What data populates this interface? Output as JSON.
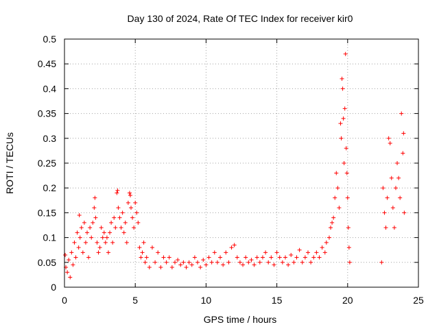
{
  "chart_data": {
    "type": "scatter",
    "title": "Day 130 of 2024, Rate Of TEC Index for receiver kir0",
    "xlabel": "GPS time / hours",
    "ylabel": "ROTI / TECUs",
    "xlim": [
      0,
      25
    ],
    "ylim": [
      0,
      0.5
    ],
    "xticks": [
      0,
      5,
      10,
      15,
      20,
      25
    ],
    "xtick_labels": [
      "0",
      "5",
      "10",
      "15",
      "20",
      "25"
    ],
    "yticks": [
      0,
      0.05,
      0.1,
      0.15,
      0.2,
      0.25,
      0.3,
      0.35,
      0.4,
      0.45,
      0.5
    ],
    "ytick_labels": [
      "0",
      "0.05",
      "0.1",
      "0.15",
      "0.2",
      "0.25",
      "0.3",
      "0.35",
      "0.4",
      "0.45",
      "0.5"
    ],
    "grid": true,
    "marker": "plus",
    "color": "#ff0000",
    "series": [
      {
        "name": "",
        "points": [
          [
            0.05,
            0.065
          ],
          [
            0.1,
            0.04
          ],
          [
            0.2,
            0.03
          ],
          [
            0.3,
            0.055
          ],
          [
            0.4,
            0.02
          ],
          [
            0.5,
            0.07
          ],
          [
            0.6,
            0.045
          ],
          [
            0.7,
            0.09
          ],
          [
            0.8,
            0.06
          ],
          [
            0.9,
            0.11
          ],
          [
            1.0,
            0.08
          ],
          [
            1.05,
            0.145
          ],
          [
            1.1,
            0.1
          ],
          [
            1.2,
            0.12
          ],
          [
            1.3,
            0.07
          ],
          [
            1.4,
            0.13
          ],
          [
            1.5,
            0.09
          ],
          [
            1.6,
            0.11
          ],
          [
            1.7,
            0.06
          ],
          [
            1.8,
            0.12
          ],
          [
            1.9,
            0.1
          ],
          [
            2.0,
            0.13
          ],
          [
            2.1,
            0.16
          ],
          [
            2.15,
            0.18
          ],
          [
            2.2,
            0.14
          ],
          [
            2.3,
            0.09
          ],
          [
            2.4,
            0.07
          ],
          [
            2.5,
            0.08
          ],
          [
            2.6,
            0.12
          ],
          [
            2.7,
            0.1
          ],
          [
            2.8,
            0.11
          ],
          [
            2.9,
            0.09
          ],
          [
            3.0,
            0.1
          ],
          [
            3.1,
            0.07
          ],
          [
            3.2,
            0.11
          ],
          [
            3.3,
            0.13
          ],
          [
            3.4,
            0.09
          ],
          [
            3.5,
            0.14
          ],
          [
            3.6,
            0.12
          ],
          [
            3.7,
            0.19
          ],
          [
            3.75,
            0.195
          ],
          [
            3.8,
            0.16
          ],
          [
            3.9,
            0.14
          ],
          [
            4.0,
            0.12
          ],
          [
            4.1,
            0.15
          ],
          [
            4.2,
            0.11
          ],
          [
            4.3,
            0.13
          ],
          [
            4.4,
            0.09
          ],
          [
            4.5,
            0.17
          ],
          [
            4.6,
            0.19
          ],
          [
            4.65,
            0.185
          ],
          [
            4.7,
            0.16
          ],
          [
            4.8,
            0.14
          ],
          [
            4.9,
            0.12
          ],
          [
            5.0,
            0.17
          ],
          [
            5.1,
            0.15
          ],
          [
            5.2,
            0.13
          ],
          [
            5.3,
            0.08
          ],
          [
            5.4,
            0.06
          ],
          [
            5.5,
            0.07
          ],
          [
            5.6,
            0.09
          ],
          [
            5.7,
            0.05
          ],
          [
            5.8,
            0.06
          ],
          [
            6.0,
            0.04
          ],
          [
            6.2,
            0.08
          ],
          [
            6.4,
            0.05
          ],
          [
            6.6,
            0.07
          ],
          [
            6.8,
            0.04
          ],
          [
            7.0,
            0.06
          ],
          [
            7.2,
            0.05
          ],
          [
            7.4,
            0.06
          ],
          [
            7.6,
            0.04
          ],
          [
            7.8,
            0.05
          ],
          [
            8.0,
            0.055
          ],
          [
            8.2,
            0.045
          ],
          [
            8.4,
            0.05
          ],
          [
            8.6,
            0.04
          ],
          [
            8.8,
            0.05
          ],
          [
            9.0,
            0.045
          ],
          [
            9.2,
            0.06
          ],
          [
            9.4,
            0.05
          ],
          [
            9.6,
            0.04
          ],
          [
            9.8,
            0.055
          ],
          [
            10.0,
            0.045
          ],
          [
            10.2,
            0.06
          ],
          [
            10.4,
            0.05
          ],
          [
            10.6,
            0.07
          ],
          [
            10.8,
            0.05
          ],
          [
            11.0,
            0.06
          ],
          [
            11.2,
            0.045
          ],
          [
            11.4,
            0.07
          ],
          [
            11.6,
            0.05
          ],
          [
            11.8,
            0.08
          ],
          [
            12.0,
            0.085
          ],
          [
            12.2,
            0.06
          ],
          [
            12.4,
            0.05
          ],
          [
            12.6,
            0.045
          ],
          [
            12.8,
            0.06
          ],
          [
            13.0,
            0.05
          ],
          [
            13.2,
            0.055
          ],
          [
            13.4,
            0.045
          ],
          [
            13.6,
            0.06
          ],
          [
            13.8,
            0.05
          ],
          [
            14.0,
            0.06
          ],
          [
            14.2,
            0.07
          ],
          [
            14.4,
            0.05
          ],
          [
            14.6,
            0.06
          ],
          [
            14.8,
            0.045
          ],
          [
            15.0,
            0.07
          ],
          [
            15.2,
            0.06
          ],
          [
            15.4,
            0.05
          ],
          [
            15.6,
            0.06
          ],
          [
            15.8,
            0.045
          ],
          [
            16.0,
            0.065
          ],
          [
            16.2,
            0.05
          ],
          [
            16.4,
            0.06
          ],
          [
            16.6,
            0.075
          ],
          [
            16.8,
            0.05
          ],
          [
            17.0,
            0.06
          ],
          [
            17.2,
            0.07
          ],
          [
            17.4,
            0.05
          ],
          [
            17.6,
            0.06
          ],
          [
            17.8,
            0.07
          ],
          [
            18.0,
            0.06
          ],
          [
            18.2,
            0.08
          ],
          [
            18.4,
            0.07
          ],
          [
            18.5,
            0.09
          ],
          [
            18.7,
            0.1
          ],
          [
            18.8,
            0.12
          ],
          [
            18.9,
            0.13
          ],
          [
            19.0,
            0.14
          ],
          [
            19.1,
            0.18
          ],
          [
            19.2,
            0.23
          ],
          [
            19.3,
            0.2
          ],
          [
            19.4,
            0.16
          ],
          [
            19.5,
            0.33
          ],
          [
            19.55,
            0.3
          ],
          [
            19.6,
            0.42
          ],
          [
            19.65,
            0.4
          ],
          [
            19.7,
            0.34
          ],
          [
            19.75,
            0.25
          ],
          [
            19.8,
            0.36
          ],
          [
            19.85,
            0.47
          ],
          [
            19.9,
            0.28
          ],
          [
            19.95,
            0.23
          ],
          [
            20.0,
            0.18
          ],
          [
            20.05,
            0.12
          ],
          [
            20.1,
            0.08
          ],
          [
            20.15,
            0.05
          ],
          [
            22.4,
            0.05
          ],
          [
            22.5,
            0.2
          ],
          [
            22.6,
            0.15
          ],
          [
            22.7,
            0.12
          ],
          [
            22.8,
            0.18
          ],
          [
            22.9,
            0.3
          ],
          [
            23.0,
            0.29
          ],
          [
            23.1,
            0.22
          ],
          [
            23.2,
            0.16
          ],
          [
            23.3,
            0.12
          ],
          [
            23.4,
            0.2
          ],
          [
            23.5,
            0.25
          ],
          [
            23.6,
            0.22
          ],
          [
            23.7,
            0.18
          ],
          [
            23.8,
            0.35
          ],
          [
            23.9,
            0.27
          ],
          [
            23.95,
            0.31
          ],
          [
            24.0,
            0.15
          ]
        ]
      }
    ]
  }
}
